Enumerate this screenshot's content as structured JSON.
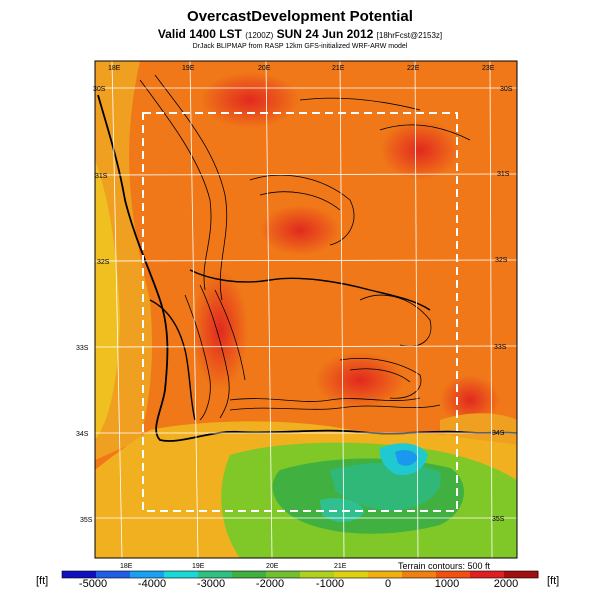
{
  "title": "OvercastDevelopment Potential",
  "subtitle": {
    "main": "Valid 1400 LST",
    "utc": "(1200Z)",
    "date": "SUN 24 Jun 2012",
    "run": "[18hrFcst@2153z]"
  },
  "credit": "DrJack BLIPMAP from RASP 12km GFS-initialized WRF-ARW model",
  "lon_labels_top": [
    "18E",
    "19E",
    "20E",
    "21E",
    "22E",
    "23E"
  ],
  "lon_labels_bottom": [
    "18E",
    "19E",
    "20E",
    "21E"
  ],
  "lat_labels": [
    "30S",
    "31S",
    "32S",
    "33S",
    "34S",
    "35S"
  ],
  "colorbar": {
    "unit": "[ft]",
    "ticks": [
      "-5000",
      "-4000",
      "-3000",
      "-2000",
      "-1000",
      "0",
      "1000",
      "2000"
    ],
    "colors": [
      "#1010c0",
      "#1f5fe6",
      "#1aa0f0",
      "#18d8d8",
      "#30c080",
      "#40b040",
      "#70c030",
      "#b0d020",
      "#e0d010",
      "#f0b010",
      "#f08010",
      "#f05010",
      "#e02020",
      "#a01010"
    ]
  },
  "terrain_note": "Terrain contours: 500 ft"
}
